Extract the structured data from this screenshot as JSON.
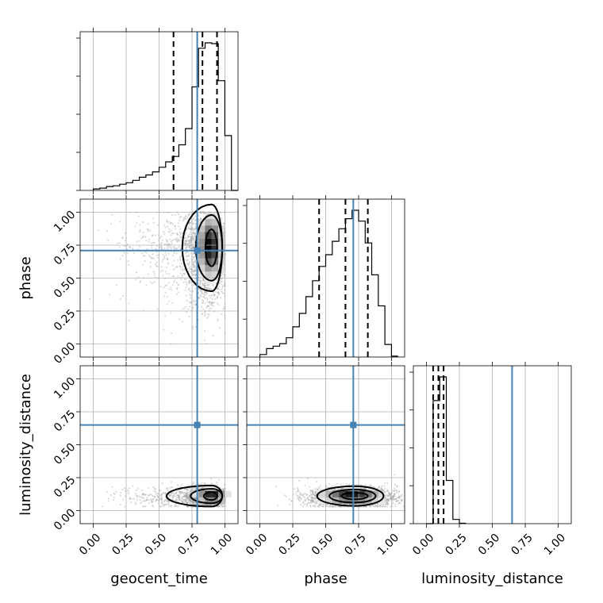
{
  "chart_data": {
    "type": "corner",
    "parameters": [
      "geocent_time",
      "phase",
      "luminosity_distance"
    ],
    "axis_labels": {
      "geocent_time": "geocent_time",
      "phase": "phase",
      "luminosity_distance": "luminosity_distance"
    },
    "axis_range": [
      -0.1,
      1.1
    ],
    "ticks": [
      0.0,
      0.25,
      0.5,
      0.75,
      1.0
    ],
    "tick_labels": [
      "0.00",
      "0.25",
      "0.50",
      "0.75",
      "1.00"
    ],
    "grid": true,
    "truths": {
      "geocent_time": 0.79,
      "phase": 0.71,
      "luminosity_distance": 0.65
    },
    "truth_color": "#4682b4",
    "marginals": [
      {
        "parameter": "geocent_time",
        "bin_edges": [
          0.0,
          0.05,
          0.1,
          0.15,
          0.2,
          0.25,
          0.3,
          0.35,
          0.4,
          0.45,
          0.5,
          0.55,
          0.6,
          0.65,
          0.7,
          0.75,
          0.8,
          0.85,
          0.9,
          0.95,
          1.0,
          1.05
        ],
        "counts": [
          2,
          3,
          5,
          6,
          8,
          10,
          13,
          17,
          20,
          24,
          30,
          37,
          44,
          59,
          80,
          134,
          184,
          191,
          190,
          142,
          71,
          0
        ],
        "quantiles": [
          0.61,
          0.83,
          0.94
        ]
      },
      {
        "parameter": "phase",
        "bin_edges": [
          0.0,
          0.05,
          0.1,
          0.15,
          0.2,
          0.25,
          0.3,
          0.35,
          0.4,
          0.45,
          0.5,
          0.55,
          0.6,
          0.65,
          0.7,
          0.75,
          0.8,
          0.85,
          0.9,
          0.95,
          1.0,
          1.05
        ],
        "counts": [
          3,
          10,
          13,
          16,
          23,
          36,
          52,
          72,
          91,
          108,
          122,
          138,
          153,
          165,
          175,
          162,
          136,
          98,
          61,
          15,
          1
        ],
        "quantiles": [
          0.45,
          0.65,
          0.82
        ]
      },
      {
        "parameter": "luminosity_distance",
        "bin_edges": [
          0.0,
          0.05,
          0.1,
          0.15,
          0.2,
          0.25,
          0.3
        ],
        "counts": [
          0,
          290,
          346,
          102,
          10,
          1
        ],
        "quantiles": [
          0.05,
          0.09,
          0.13
        ]
      }
    ],
    "joint_2d": [
      {
        "x": "geocent_time",
        "y": "phase",
        "peak": [
          0.88,
          0.74
        ],
        "contour_levels": [
          "inner",
          "middle",
          "outer"
        ]
      },
      {
        "x": "geocent_time",
        "y": "luminosity_distance",
        "peak": [
          0.9,
          0.11
        ],
        "contour_levels": [
          "inner",
          "middle",
          "outer"
        ]
      },
      {
        "x": "phase",
        "y": "luminosity_distance",
        "peak": [
          0.7,
          0.11
        ],
        "contour_levels": [
          "inner",
          "middle",
          "outer"
        ]
      }
    ]
  }
}
